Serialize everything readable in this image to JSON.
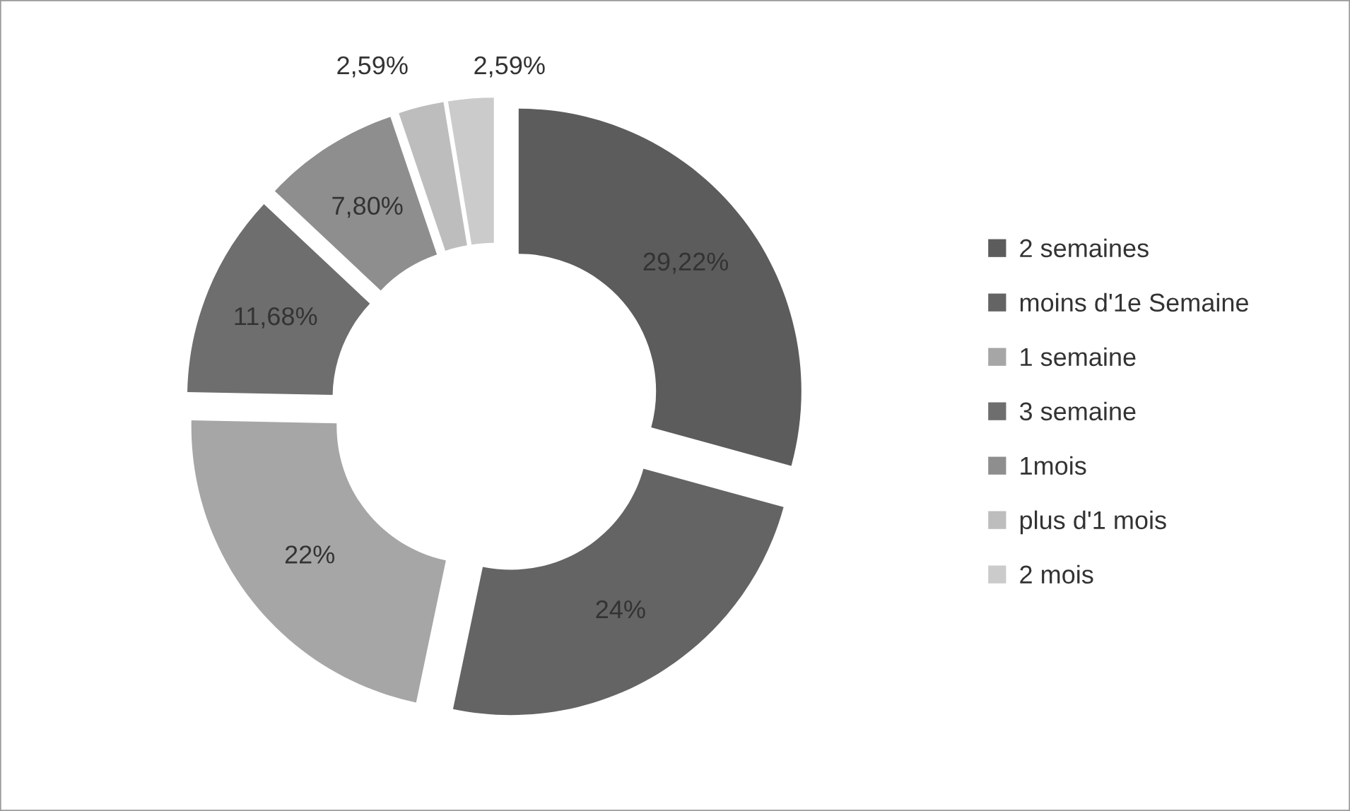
{
  "chart_data": {
    "type": "donut",
    "categories": [
      "2 semaines",
      "moins d'1e Semaine",
      "1 semaine",
      "3 semaine",
      "1mois",
      "plus d'1 mois",
      "2 mois"
    ],
    "values": [
      29.22,
      24,
      22,
      11.68,
      7.8,
      2.59,
      2.59
    ],
    "value_labels": [
      "29,22%",
      "24%",
      "22%",
      "11,68%",
      "7,80%",
      "2,59%",
      "2,59%"
    ],
    "colors": [
      "#5c5c5c",
      "#646464",
      "#a6a6a6",
      "#6e6e6e",
      "#8e8e8e",
      "#bdbdbd",
      "#cbcbcb"
    ],
    "legend": "right"
  }
}
